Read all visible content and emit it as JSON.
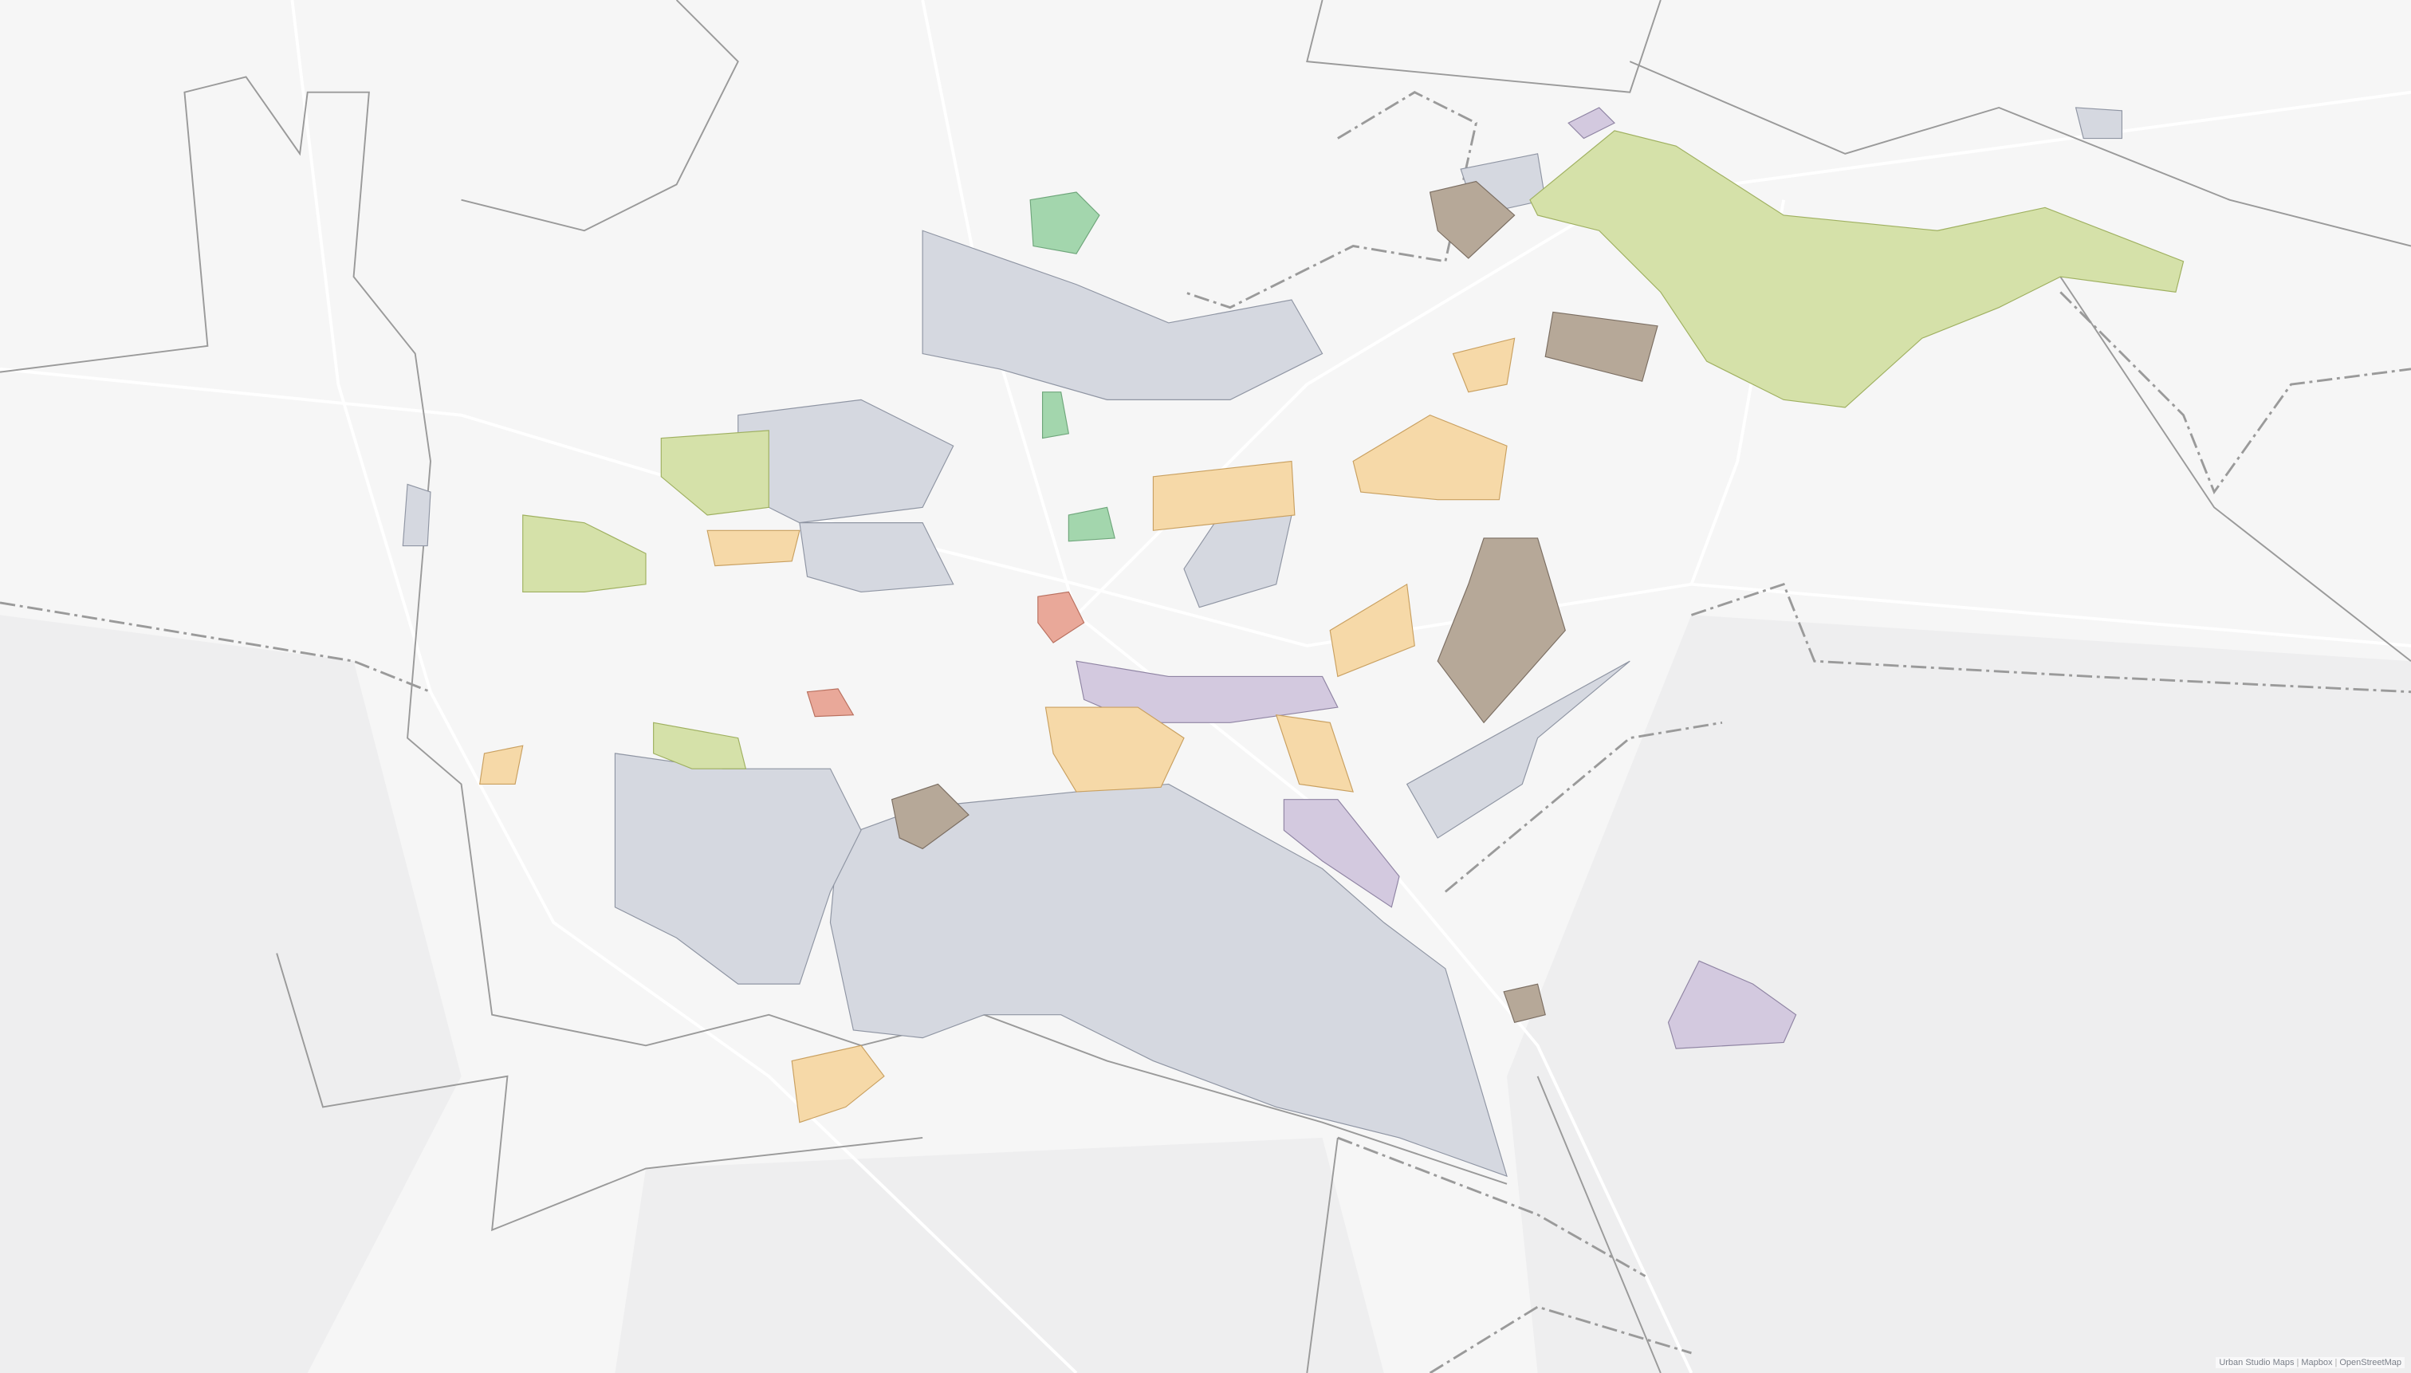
{
  "map": {
    "attribution": [
      "Urban Studio Maps",
      "Mapbox",
      "OpenStreetMap"
    ],
    "colors": {
      "background": "#f6f6f6",
      "gray": "#d5d8e0",
      "orange": "#f6d9a8",
      "lime": "#d5e1a9",
      "brown": "#b6a898",
      "purple": "#d3c9df",
      "green": "#a3d6ad",
      "red": "#e9a899"
    }
  }
}
